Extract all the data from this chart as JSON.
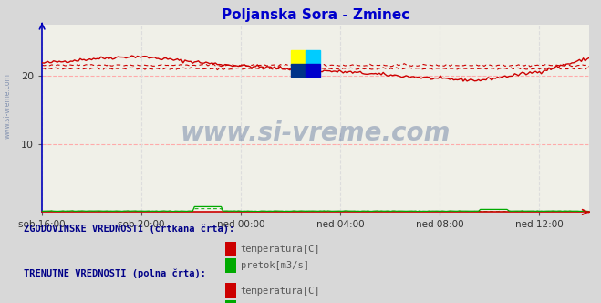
{
  "title": "Poljanska Sora - Zminec",
  "title_color": "#0000cc",
  "bg_color": "#d8d8d8",
  "plot_bg_color": "#f0f0e8",
  "grid_color_h": "#ffaaaa",
  "grid_color_v": "#dddddd",
  "x_labels": [
    "sob 16:00",
    "sob 20:00",
    "ned 00:00",
    "ned 04:00",
    "ned 08:00",
    "ned 12:00"
  ],
  "x_ticks_norm": [
    0.0,
    0.1818,
    0.3636,
    0.5454,
    0.7272,
    0.909
  ],
  "ylim": [
    0,
    27.5
  ],
  "yticks": [
    10,
    20
  ],
  "temp_color": "#cc0000",
  "pretok_color": "#00aa00",
  "watermark": "www.si-vreme.com",
  "watermark_color": "#1a3a7a",
  "logo_colors": [
    "#ffff00",
    "#00ccff",
    "#003366",
    "#0000cc"
  ],
  "legend_hist_label": "ZGODOVINSKE VREDNOSTI (črtkana črta):",
  "legend_curr_label": "TRENUTNE VREDNOSTI (polna črta):",
  "legend_temp": "temperatura[C]",
  "legend_pretok": "pretok[m3/s]",
  "left_text": "www.si-vreme.com",
  "n_points": 288
}
